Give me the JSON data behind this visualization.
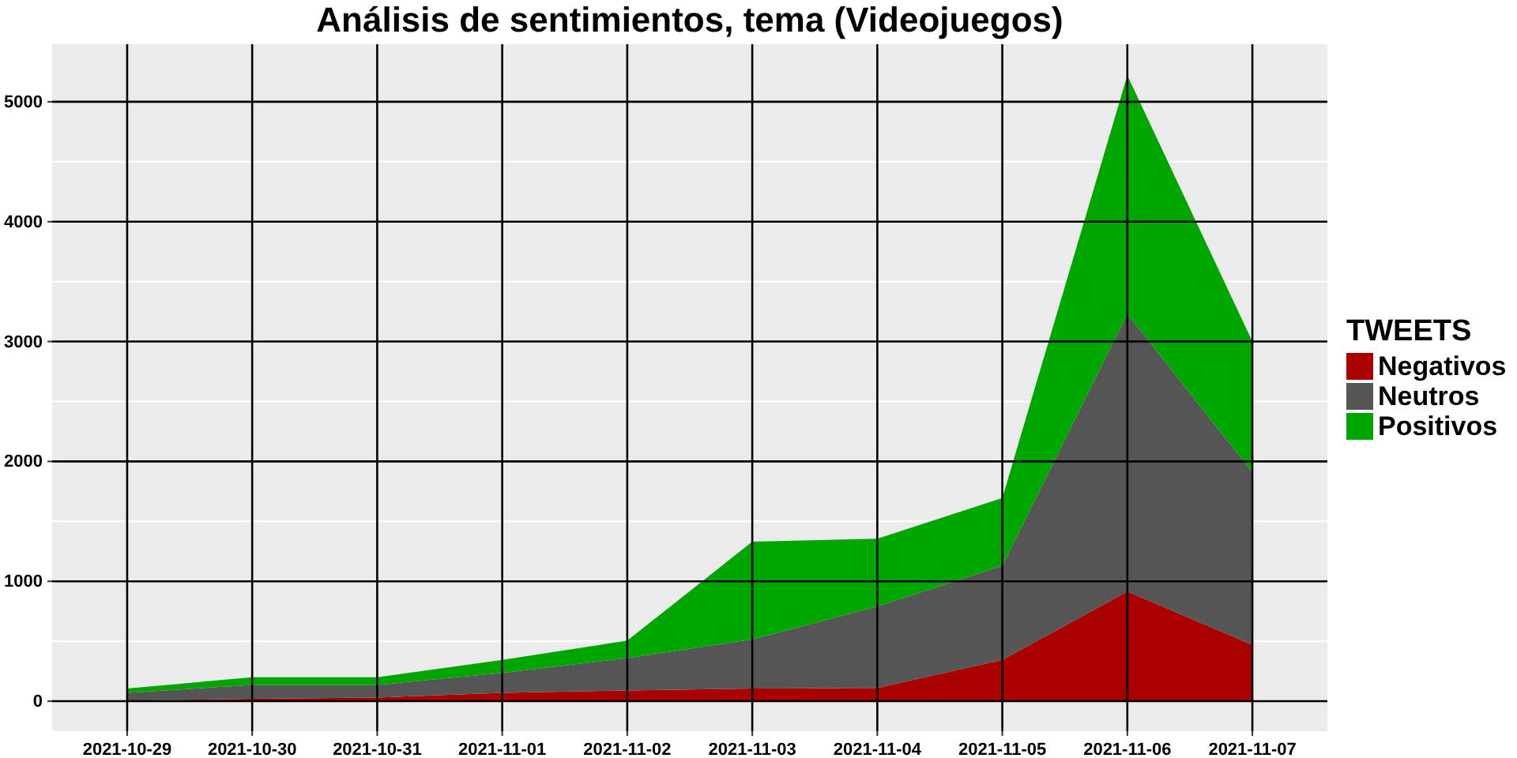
{
  "chart_data": {
    "type": "area",
    "stacked": true,
    "title": "Análisis de sentimientos, tema (Videojuegos)",
    "legend_title": "TWEETS",
    "legend": "right",
    "grid": true,
    "x": [
      "2021-10-29",
      "2021-10-30",
      "2021-10-31",
      "2021-11-01",
      "2021-11-02",
      "2021-11-03",
      "2021-11-04",
      "2021-11-05",
      "2021-11-06",
      "2021-11-07"
    ],
    "xlim": [
      "2021-10-28T09:36",
      "2021-11-07T14:24"
    ],
    "xticks": [
      "2021-10-29",
      "2021-10-30",
      "2021-10-31",
      "2021-11-01",
      "2021-11-02",
      "2021-11-03",
      "2021-11-04",
      "2021-11-05",
      "2021-11-06",
      "2021-11-07"
    ],
    "ylim": [
      -250,
      5480
    ],
    "yticks": [
      0,
      1000,
      2000,
      3000,
      4000,
      5000
    ],
    "series": [
      {
        "name": "Negativos",
        "color": "#aa0000",
        "values": [
          5,
          20,
          30,
          70,
          90,
          105,
          110,
          345,
          915,
          470
        ]
      },
      {
        "name": "Neutros",
        "color": "#555555",
        "values": [
          65,
          115,
          105,
          165,
          270,
          410,
          680,
          785,
          2315,
          1440
        ]
      },
      {
        "name": "Positivos",
        "color": "#00a600",
        "values": [
          35,
          65,
          65,
          110,
          145,
          815,
          565,
          565,
          1990,
          1090
        ]
      }
    ]
  }
}
